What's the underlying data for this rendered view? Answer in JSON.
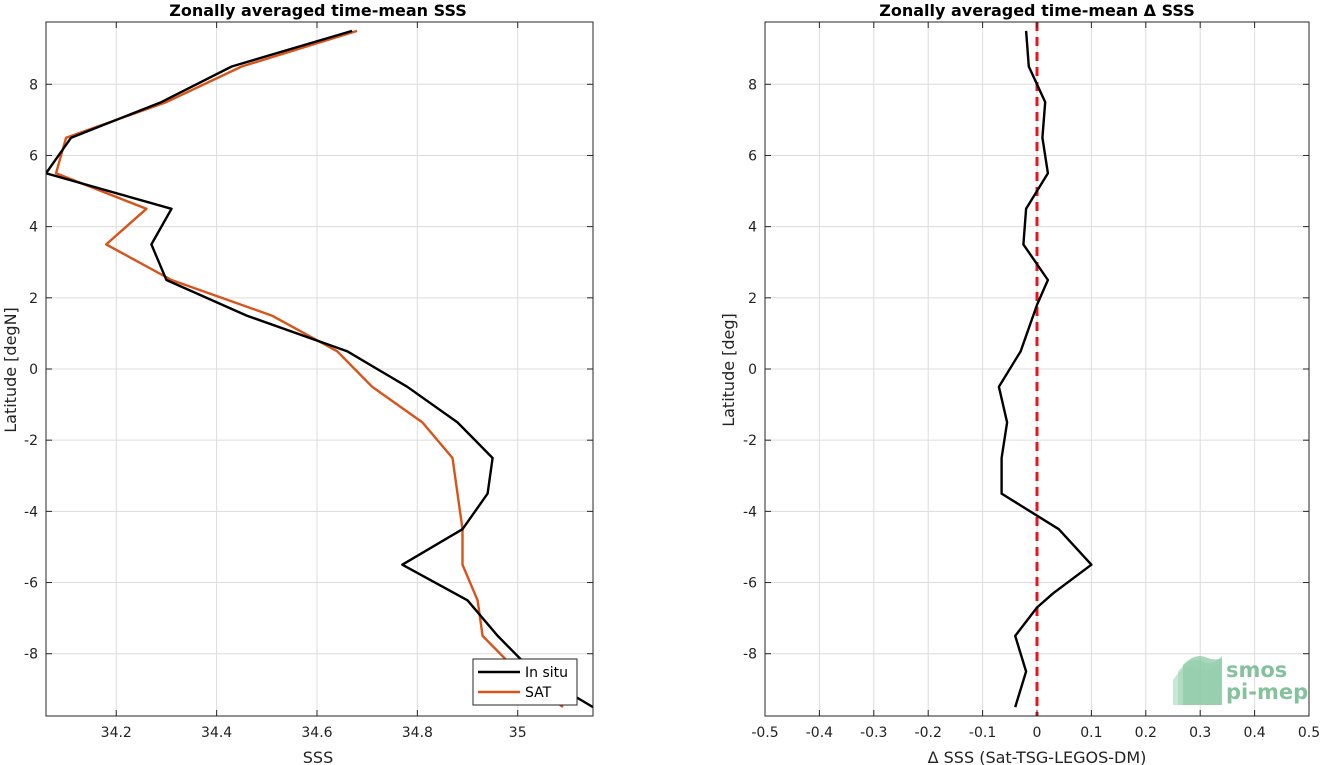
{
  "colors": {
    "insitu": "#000000",
    "sat": "#D95319",
    "zero_line": "#E8141B",
    "grid": "#DCDCDC",
    "axis": "#262626",
    "logo_green": "#6FB88C"
  },
  "chart_data": [
    {
      "type": "line",
      "title": "Zonally averaged time-mean SSS",
      "xlabel": "SSS",
      "ylabel": "Latitude [degN]",
      "xlim": [
        34.06,
        35.15
      ],
      "ylim": [
        -9.75,
        9.75
      ],
      "xticks": [
        34.2,
        34.4,
        34.6,
        34.8,
        35
      ],
      "xtick_labels": [
        "34.2",
        "34.4",
        "34.6",
        "34.8",
        "35"
      ],
      "yticks": [
        -8,
        -6,
        -4,
        -2,
        0,
        2,
        4,
        6,
        8
      ],
      "ytick_labels": [
        "-8",
        "-6",
        "-4",
        "-2",
        "0",
        "2",
        "4",
        "6",
        "8"
      ],
      "grid": true,
      "legend_position": "bottom-right",
      "series": [
        {
          "name": "In situ",
          "color": "#000000",
          "points": [
            [
              35.15,
              -9.5
            ],
            [
              35.03,
              -8.5
            ],
            [
              34.96,
              -7.5
            ],
            [
              34.9,
              -6.5
            ],
            [
              34.77,
              -5.5
            ],
            [
              34.89,
              -4.5
            ],
            [
              34.94,
              -3.5
            ],
            [
              34.95,
              -2.5
            ],
            [
              34.88,
              -1.5
            ],
            [
              34.78,
              -0.5
            ],
            [
              34.66,
              0.5
            ],
            [
              34.46,
              1.5
            ],
            [
              34.3,
              2.5
            ],
            [
              34.27,
              3.5
            ],
            [
              34.31,
              4.5
            ],
            [
              34.06,
              5.5
            ],
            [
              34.11,
              6.5
            ],
            [
              34.29,
              7.5
            ],
            [
              34.43,
              8.5
            ],
            [
              34.67,
              9.5
            ]
          ]
        },
        {
          "name": "SAT",
          "color": "#D95319",
          "points": [
            [
              35.09,
              -9.5
            ],
            [
              35.0,
              -8.5
            ],
            [
              34.93,
              -7.5
            ],
            [
              34.92,
              -6.5
            ],
            [
              34.89,
              -5.5
            ],
            [
              34.89,
              -4.5
            ],
            [
              34.88,
              -3.5
            ],
            [
              34.87,
              -2.5
            ],
            [
              34.81,
              -1.5
            ],
            [
              34.71,
              -0.5
            ],
            [
              34.64,
              0.5
            ],
            [
              34.51,
              1.5
            ],
            [
              34.31,
              2.5
            ],
            [
              34.18,
              3.5
            ],
            [
              34.26,
              4.5
            ],
            [
              34.08,
              5.5
            ],
            [
              34.1,
              6.5
            ],
            [
              34.3,
              7.5
            ],
            [
              34.45,
              8.5
            ],
            [
              34.68,
              9.5
            ]
          ]
        }
      ]
    },
    {
      "type": "line",
      "title": "Zonally averaged time-mean Δ SSS",
      "xlabel": "Δ SSS (Sat-TSG-LEGOS-DM)",
      "ylabel": "Latitude [deg]",
      "xlim": [
        -0.5,
        0.5
      ],
      "ylim": [
        -9.75,
        9.75
      ],
      "xticks": [
        -0.5,
        -0.4,
        -0.3,
        -0.2,
        -0.1,
        0,
        0.1,
        0.2,
        0.3,
        0.4,
        0.5
      ],
      "xtick_labels": [
        "-0.5",
        "-0.4",
        "-0.3",
        "-0.2",
        "-0.1",
        "0",
        "0.1",
        "0.2",
        "0.3",
        "0.4",
        "0.5"
      ],
      "yticks": [
        -8,
        -6,
        -4,
        -2,
        0,
        2,
        4,
        6,
        8
      ],
      "ytick_labels": [
        "-8",
        "-6",
        "-4",
        "-2",
        "0",
        "2",
        "4",
        "6",
        "8"
      ],
      "grid": true,
      "reference_line": {
        "x": 0,
        "style": "dashed",
        "color": "#E8141B"
      },
      "series": [
        {
          "color": "#000000",
          "points": [
            [
              -0.04,
              -9.5
            ],
            [
              -0.02,
              -8.5
            ],
            [
              -0.04,
              -7.5
            ],
            [
              0.0,
              -6.7
            ],
            [
              0.03,
              -6.3
            ],
            [
              0.1,
              -5.5
            ],
            [
              0.04,
              -4.5
            ],
            [
              -0.065,
              -3.5
            ],
            [
              -0.065,
              -2.5
            ],
            [
              -0.055,
              -1.5
            ],
            [
              -0.07,
              -0.5
            ],
            [
              -0.03,
              0.5
            ],
            [
              0.0,
              1.8
            ],
            [
              0.02,
              2.5
            ],
            [
              -0.025,
              3.5
            ],
            [
              -0.02,
              4.5
            ],
            [
              0.02,
              5.5
            ],
            [
              0.01,
              6.5
            ],
            [
              0.015,
              7.5
            ],
            [
              -0.015,
              8.5
            ],
            [
              -0.02,
              9.5
            ]
          ]
        }
      ]
    }
  ],
  "logo": {
    "line1": "smos",
    "line2": "pi-mep"
  }
}
